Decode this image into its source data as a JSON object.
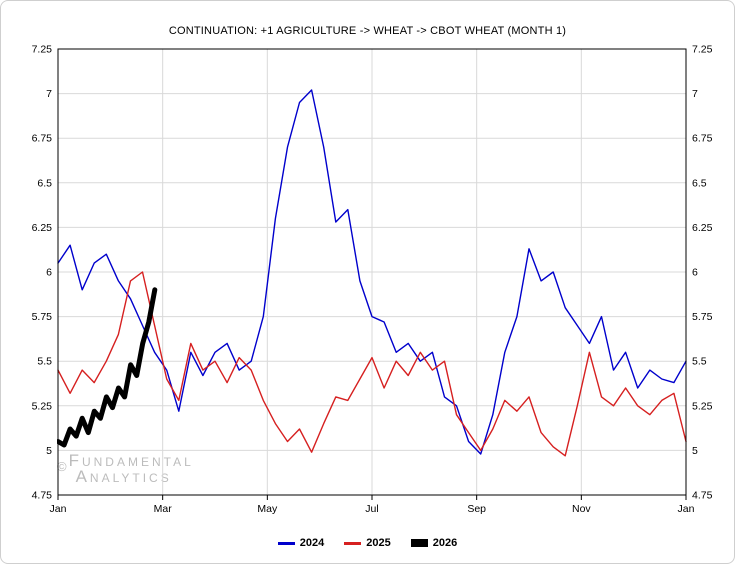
{
  "watermark": {
    "copyright": "©",
    "line1": "Fundamental",
    "line2": "Analytics"
  },
  "chart_data": {
    "type": "line",
    "title": "CONTINUATION: +1 AGRICULTURE -> WHEAT -> CBOT WHEAT (MONTH 1)",
    "grid": true,
    "legend_position": "bottom",
    "x_axis": {
      "min": 0,
      "max": 12,
      "tick_months": [
        0,
        2,
        4,
        6,
        8,
        10,
        12
      ],
      "tick_labels": [
        "Jan",
        "Mar",
        "May",
        "Jul",
        "Sep",
        "Nov",
        "Jan"
      ]
    },
    "y_axis": {
      "min": 4.75,
      "max": 7.25,
      "step": 0.25,
      "tick_labels": [
        "4.75",
        "5",
        "5.25",
        "5.5",
        "5.75",
        "6",
        "6.25",
        "6.5",
        "6.75",
        "7",
        "7.25"
      ]
    },
    "series": [
      {
        "name": "2024",
        "color": "#0000cc",
        "line_width": 1.4,
        "x_start": 0,
        "x_end": 12,
        "values": [
          6.05,
          6.15,
          5.9,
          6.05,
          6.1,
          5.95,
          5.85,
          5.7,
          5.55,
          5.45,
          5.22,
          5.55,
          5.42,
          5.55,
          5.6,
          5.45,
          5.5,
          5.75,
          6.3,
          6.7,
          6.95,
          7.02,
          6.7,
          6.28,
          6.35,
          5.95,
          5.75,
          5.72,
          5.55,
          5.6,
          5.5,
          5.55,
          5.3,
          5.25,
          5.05,
          4.98,
          5.2,
          5.55,
          5.75,
          6.13,
          5.95,
          6.0,
          5.8,
          5.7,
          5.6,
          5.75,
          5.45,
          5.55,
          5.35,
          5.45,
          5.4,
          5.38,
          5.5
        ]
      },
      {
        "name": "2025",
        "color": "#d62020",
        "line_width": 1.4,
        "x_start": 0,
        "x_end": 12,
        "values": [
          5.45,
          5.32,
          5.45,
          5.38,
          5.5,
          5.65,
          5.95,
          6.0,
          5.7,
          5.4,
          5.28,
          5.6,
          5.45,
          5.5,
          5.38,
          5.52,
          5.45,
          5.28,
          5.15,
          5.05,
          5.12,
          4.99,
          5.15,
          5.3,
          5.28,
          5.4,
          5.52,
          5.35,
          5.5,
          5.42,
          5.55,
          5.45,
          5.5,
          5.2,
          5.1,
          5.0,
          5.12,
          5.28,
          5.22,
          5.3,
          5.1,
          5.02,
          4.97,
          5.25,
          5.55,
          5.3,
          5.25,
          5.35,
          5.25,
          5.2,
          5.28,
          5.32,
          5.05
        ]
      },
      {
        "name": "2026",
        "color": "#000000",
        "line_width": 5,
        "x_start": 0,
        "x_end": 1.85,
        "values": [
          5.05,
          5.03,
          5.12,
          5.08,
          5.18,
          5.1,
          5.22,
          5.18,
          5.3,
          5.24,
          5.35,
          5.3,
          5.48,
          5.42,
          5.6,
          5.72,
          5.9
        ]
      }
    ]
  }
}
